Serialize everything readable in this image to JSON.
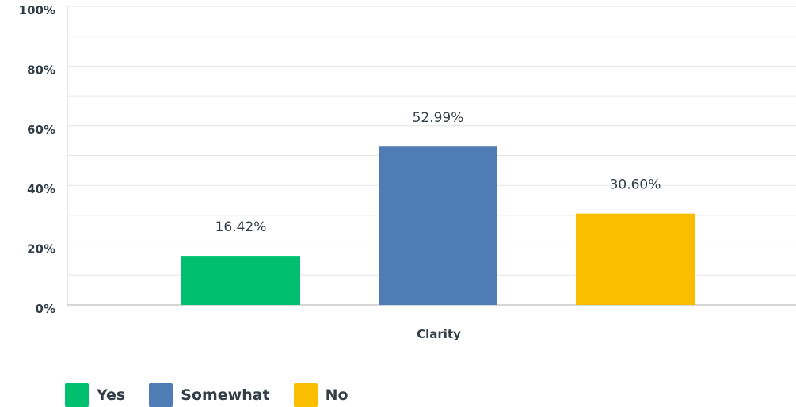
{
  "chart_data": {
    "type": "bar",
    "categories": [
      "Clarity"
    ],
    "series": [
      {
        "name": "Yes",
        "values": [
          16.42
        ],
        "color": "#00bf6f",
        "label": "16.42%"
      },
      {
        "name": "Somewhat",
        "values": [
          52.99
        ],
        "color": "#507cb6",
        "label": "52.99%"
      },
      {
        "name": "No",
        "values": [
          30.6
        ],
        "color": "#f9be00",
        "label": "30.60%"
      }
    ],
    "ylim": [
      0,
      100
    ],
    "yticks": [
      {
        "value": 0,
        "label": "0%"
      },
      {
        "value": 20,
        "label": "20%"
      },
      {
        "value": 40,
        "label": "40%"
      },
      {
        "value": 60,
        "label": "60%"
      },
      {
        "value": 80,
        "label": "80%"
      },
      {
        "value": 100,
        "label": "100%"
      }
    ],
    "grid": true,
    "legend_position": "bottom-left"
  }
}
